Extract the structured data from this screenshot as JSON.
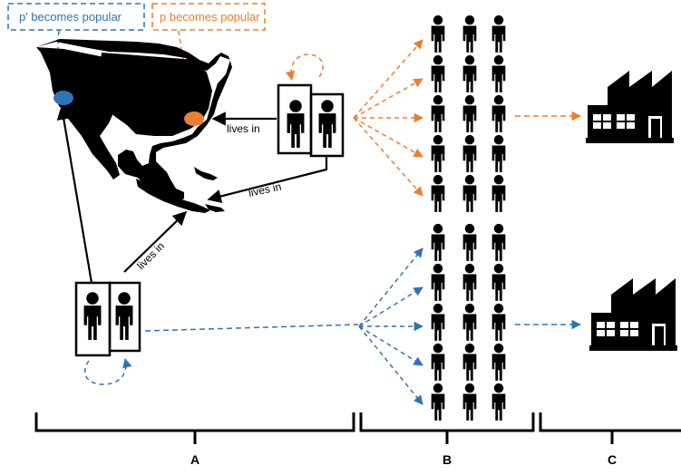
{
  "callouts": {
    "blue": "p′ becomes popular",
    "orange": "p becomes popular"
  },
  "edge_labels": {
    "couple_top": "lives in",
    "couple_top_south": "lives in",
    "couple_bottom": "lives in"
  },
  "sections": {
    "a": "A",
    "b": "B",
    "c": "C"
  },
  "colors": {
    "orange": "#ED7D31",
    "blue": "#2E75B6",
    "black": "#000000"
  },
  "icons": [
    "person-icon",
    "factory-icon",
    "north-america-map"
  ],
  "crowd_rows": 5,
  "crowd_cols": 3
}
